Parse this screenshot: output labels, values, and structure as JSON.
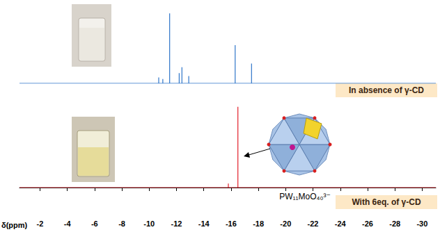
{
  "chart_data": [
    {
      "type": "line",
      "xlim": [
        -0.5,
        -31
      ],
      "ylim": [
        0,
        1
      ],
      "tick_labels": false,
      "grid": false,
      "series": [
        {
          "name": "In absence of γ-CD",
          "color": "#2e75c9",
          "x": [
            -10.7,
            -11.0,
            -11.5,
            -12.2,
            -12.4,
            -12.9,
            -16.3,
            -17.5
          ],
          "values": [
            0.08,
            0.06,
            0.95,
            0.14,
            0.22,
            0.1,
            0.52,
            0.27
          ]
        }
      ]
    },
    {
      "type": "line",
      "xlim": [
        -0.5,
        -31
      ],
      "ylim": [
        0,
        1.05
      ],
      "tick_labels": "x",
      "grid": false,
      "xlabel": "δ(ppm)",
      "xticks": [
        -2,
        -4,
        -6,
        -8,
        -10,
        -12,
        -14,
        -16,
        -18,
        -20,
        -22,
        -24,
        -26,
        -28,
        -30
      ],
      "annotations": [
        "PW₁₁MoO₄₀³⁻"
      ],
      "series": [
        {
          "name": "With 6eq. of γ-CD",
          "color": "#e3202a",
          "x": [
            -15.8,
            -16.5
          ],
          "values": [
            0.05,
            1.0
          ]
        }
      ]
    }
  ]
}
